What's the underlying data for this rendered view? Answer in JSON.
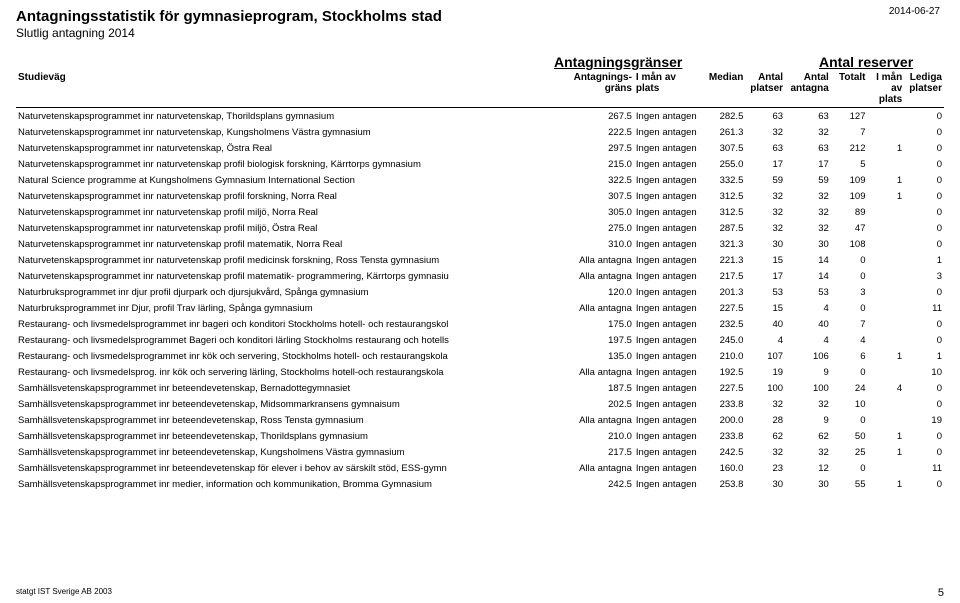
{
  "date": "2014-06-27",
  "title_a": "Antagningsstatistik för gymnasieprogram,",
  "title_b": "Stockholms stad",
  "subtitle": "Slutlig antagning 2014",
  "section_hdr_1": "Antagningsgränser",
  "section_hdr_2": "Antal reserver",
  "headers": {
    "studievag": "Studieväg",
    "grans": "Antagnings-\ngräns",
    "iman": "I mån\nav plats",
    "median": "Median",
    "platser": "Antal\nplatser",
    "antagna": "Antal\nantagna",
    "totalt": "Totalt",
    "iman2": "I mån\nav plats",
    "lediga": "Lediga\nplatser"
  },
  "rows": [
    {
      "name": "Naturvetenskapsprogrammet inr naturvetenskap, Thorildsplans gymnasium",
      "grans": "267.5",
      "iman": "Ingen antagen",
      "median": "282.5",
      "platser": "63",
      "ant": "63",
      "tot": "127",
      "iman2": "",
      "lediga": "0"
    },
    {
      "name": "Naturvetenskapsprogrammet inr naturvetenskap, Kungsholmens Västra gymnasium",
      "grans": "222.5",
      "iman": "Ingen antagen",
      "median": "261.3",
      "platser": "32",
      "ant": "32",
      "tot": "7",
      "iman2": "",
      "lediga": "0"
    },
    {
      "name": "Naturvetenskapsprogrammet inr naturvetenskap, Östra Real",
      "grans": "297.5",
      "iman": "Ingen antagen",
      "median": "307.5",
      "platser": "63",
      "ant": "63",
      "tot": "212",
      "iman2": "1",
      "lediga": "0"
    },
    {
      "name": "Naturvetenskapsprogrammet inr naturvetenskap profil biologisk forskning, Kärrtorps gymnasium",
      "grans": "215.0",
      "iman": "Ingen antagen",
      "median": "255.0",
      "platser": "17",
      "ant": "17",
      "tot": "5",
      "iman2": "",
      "lediga": "0"
    },
    {
      "name": "Natural Science programme at Kungsholmens Gymnasium International Section",
      "grans": "322.5",
      "iman": "Ingen antagen",
      "median": "332.5",
      "platser": "59",
      "ant": "59",
      "tot": "109",
      "iman2": "1",
      "lediga": "0"
    },
    {
      "name": "Naturvetenskapsprogrammet inr naturvetenskap profil forskning, Norra Real",
      "grans": "307.5",
      "iman": "Ingen antagen",
      "median": "312.5",
      "platser": "32",
      "ant": "32",
      "tot": "109",
      "iman2": "1",
      "lediga": "0"
    },
    {
      "name": "Naturvetenskapsprogrammet inr naturvetenskap profil miljö, Norra Real",
      "grans": "305.0",
      "iman": "Ingen antagen",
      "median": "312.5",
      "platser": "32",
      "ant": "32",
      "tot": "89",
      "iman2": "",
      "lediga": "0"
    },
    {
      "name": "Naturvetenskapsprogrammet inr naturvetenskap profil miljö, Östra Real",
      "grans": "275.0",
      "iman": "Ingen antagen",
      "median": "287.5",
      "platser": "32",
      "ant": "32",
      "tot": "47",
      "iman2": "",
      "lediga": "0"
    },
    {
      "name": "Naturvetenskapsprogrammet inr naturvetenskap profil matematik, Norra Real",
      "grans": "310.0",
      "iman": "Ingen antagen",
      "median": "321.3",
      "platser": "30",
      "ant": "30",
      "tot": "108",
      "iman2": "",
      "lediga": "0"
    },
    {
      "name": "Naturvetenskapsprogrammet inr naturvetenskap profil medicinsk forskning, Ross Tensta gymnasium",
      "grans": "Alla antagna",
      "iman": "Ingen antagen",
      "median": "221.3",
      "platser": "15",
      "ant": "14",
      "tot": "0",
      "iman2": "",
      "lediga": "1"
    },
    {
      "name": "Naturvetenskapsprogrammet inr naturvetenskap profil matematik- programmering, Kärrtorps gymnasiu",
      "grans": "Alla antagna",
      "iman": "Ingen antagen",
      "median": "217.5",
      "platser": "17",
      "ant": "14",
      "tot": "0",
      "iman2": "",
      "lediga": "3"
    },
    {
      "name": "Naturbruksprogrammet inr djur profil djurpark och djursjukvård, Spånga gymnasium",
      "grans": "120.0",
      "iman": "Ingen antagen",
      "median": "201.3",
      "platser": "53",
      "ant": "53",
      "tot": "3",
      "iman2": "",
      "lediga": "0"
    },
    {
      "name": "Naturbruksprogrammet inr Djur, profil Trav lärling, Spånga gymnasium",
      "grans": "Alla antagna",
      "iman": "Ingen antagen",
      "median": "227.5",
      "platser": "15",
      "ant": "4",
      "tot": "0",
      "iman2": "",
      "lediga": "11"
    },
    {
      "name": "Restaurang- och livsmedelsprogrammet inr bageri och konditori Stockholms hotell- och restaurangskol",
      "grans": "175.0",
      "iman": "Ingen antagen",
      "median": "232.5",
      "platser": "40",
      "ant": "40",
      "tot": "7",
      "iman2": "",
      "lediga": "0"
    },
    {
      "name": "Restaurang- och livsmedelsprogrammet Bageri och konditori lärling Stockholms restaurang och hotells",
      "grans": "197.5",
      "iman": "Ingen antagen",
      "median": "245.0",
      "platser": "4",
      "ant": "4",
      "tot": "4",
      "iman2": "",
      "lediga": "0"
    },
    {
      "name": "Restaurang- och livsmedelsprogrammet inr kök och servering, Stockholms hotell- och restaurangskola",
      "grans": "135.0",
      "iman": "Ingen antagen",
      "median": "210.0",
      "platser": "107",
      "ant": "106",
      "tot": "6",
      "iman2": "1",
      "lediga": "1"
    },
    {
      "name": "Restaurang- och livsmedelsprog. inr kök och servering lärling, Stockholms hotell-och restaurangskola",
      "grans": "Alla antagna",
      "iman": "Ingen antagen",
      "median": "192.5",
      "platser": "19",
      "ant": "9",
      "tot": "0",
      "iman2": "",
      "lediga": "10"
    },
    {
      "name": "Samhällsvetenskapsprogrammet inr beteendevetenskap, Bernadottegymnasiet",
      "grans": "187.5",
      "iman": "Ingen antagen",
      "median": "227.5",
      "platser": "100",
      "ant": "100",
      "tot": "24",
      "iman2": "4",
      "lediga": "0"
    },
    {
      "name": "Samhällsvetenskapsprogrammet inr beteendevetenskap, Midsommarkransens gymnaisum",
      "grans": "202.5",
      "iman": "Ingen antagen",
      "median": "233.8",
      "platser": "32",
      "ant": "32",
      "tot": "10",
      "iman2": "",
      "lediga": "0"
    },
    {
      "name": "Samhällsvetenskapsprogrammet inr beteendevetenskap, Ross Tensta gymnasium",
      "grans": "Alla antagna",
      "iman": "Ingen antagen",
      "median": "200.0",
      "platser": "28",
      "ant": "9",
      "tot": "0",
      "iman2": "",
      "lediga": "19"
    },
    {
      "name": "Samhällsvetenskapsprogrammet inr beteendevetenskap, Thorildsplans gymnasium",
      "grans": "210.0",
      "iman": "Ingen antagen",
      "median": "233.8",
      "platser": "62",
      "ant": "62",
      "tot": "50",
      "iman2": "1",
      "lediga": "0"
    },
    {
      "name": "Samhällsvetenskapsprogrammet inr beteendevetenskap, Kungsholmens Västra gymnasium",
      "grans": "217.5",
      "iman": "Ingen antagen",
      "median": "242.5",
      "platser": "32",
      "ant": "32",
      "tot": "25",
      "iman2": "1",
      "lediga": "0"
    },
    {
      "name": "Samhällsvetenskapsprogrammet inr beteendevetenskap för elever i behov av särskilt stöd, ESS-gymn",
      "grans": "Alla antagna",
      "iman": "Ingen antagen",
      "median": "160.0",
      "platser": "23",
      "ant": "12",
      "tot": "0",
      "iman2": "",
      "lediga": "11"
    },
    {
      "name": "Samhällsvetenskapsprogrammet inr medier, information och kommunikation, Bromma Gymnasium",
      "grans": "242.5",
      "iman": "Ingen antagen",
      "median": "253.8",
      "platser": "30",
      "ant": "30",
      "tot": "55",
      "iman2": "1",
      "lediga": "0"
    }
  ],
  "footer_left": "statgt IST Sverige AB 2003",
  "footer_page": "5"
}
